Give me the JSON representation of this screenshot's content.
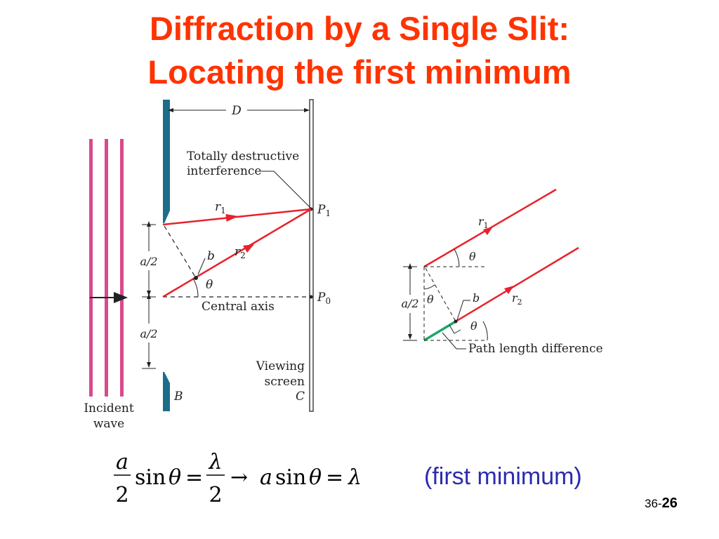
{
  "slide": {
    "title_line1": "Diffraction by a Single Slit:",
    "title_line2": "Locating the first minimum",
    "note": "(first minimum)",
    "page_prefix": "36-",
    "page_number": "26"
  },
  "left_figure": {
    "distance_label": "D",
    "interference_label_line1": "Totally destructive",
    "interference_label_line2": "interference",
    "ray1_label": "r",
    "ray1_sub": "1",
    "ray2_label": "r",
    "ray2_sub": "2",
    "point_p1": "P",
    "point_p1_sub": "1",
    "point_p0": "P",
    "point_p0_sub": "0",
    "point_b_small": "b",
    "angle_label": "θ",
    "half_width_top": "a/2",
    "half_width_bottom": "a/2",
    "central_axis_label": "Central axis",
    "screen_label_line1": "Viewing",
    "screen_label_line2": "screen",
    "screen_letter": "C",
    "barrier_letter": "B",
    "incident_line1": "Incident",
    "incident_line2": "wave"
  },
  "right_figure": {
    "ray1_label": "r",
    "ray1_sub": "1",
    "ray2_label": "r",
    "ray2_sub": "2",
    "angle_top": "θ",
    "angle_left": "θ",
    "angle_bottom": "θ",
    "point_b": "b",
    "half_width": "a/2",
    "path_diff_label": "Path length difference"
  },
  "equation": {
    "frac1_num": "a",
    "frac1_den": "2",
    "sin1": "sin",
    "theta1": "θ",
    "equals1": "=",
    "frac2_num": "λ",
    "frac2_den": "2",
    "arrow": "→",
    "a2": "a",
    "sin2": "sin",
    "theta2": "θ",
    "equals2": "=",
    "lambda2": "λ"
  },
  "colors": {
    "title": "#ff3300",
    "ray": "#e8212c",
    "wave": "#d94a8c",
    "barrier": "#1b6e8a",
    "path_diff": "#1aa86b",
    "note": "#2b2bb0"
  }
}
